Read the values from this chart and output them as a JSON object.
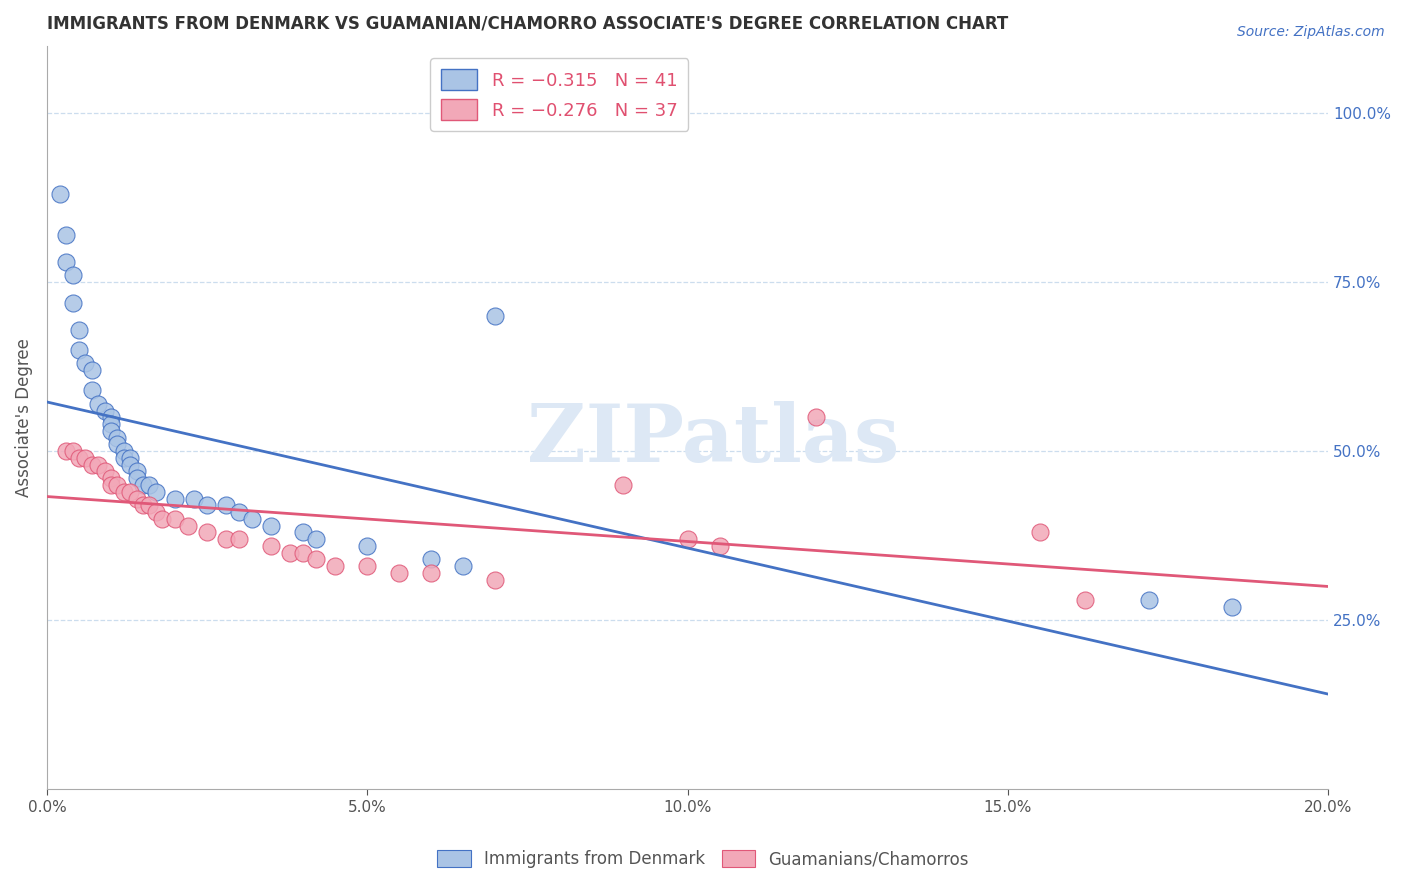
{
  "title": "IMMIGRANTS FROM DENMARK VS GUAMANIAN/CHAMORRO ASSOCIATE'S DEGREE CORRELATION CHART",
  "source": "Source: ZipAtlas.com",
  "ylabel": "Associate's Degree",
  "right_ytick_vals": [
    0.25,
    0.5,
    0.75,
    1.0
  ],
  "right_ytick_labels": [
    "25.0%",
    "50.0%",
    "75.0%",
    "100.0%"
  ],
  "line1_color": "#4472c4",
  "line2_color": "#e05878",
  "scatter1_face": "#aac4e5",
  "scatter2_face": "#f2a8b8",
  "xlim": [
    0.0,
    0.2
  ],
  "ylim": [
    0.0,
    1.1
  ],
  "blue_x": [
    0.002,
    0.003,
    0.003,
    0.004,
    0.004,
    0.005,
    0.005,
    0.006,
    0.007,
    0.007,
    0.008,
    0.009,
    0.01,
    0.01,
    0.01,
    0.011,
    0.011,
    0.012,
    0.012,
    0.013,
    0.013,
    0.014,
    0.014,
    0.015,
    0.016,
    0.017,
    0.02,
    0.023,
    0.025,
    0.028,
    0.03,
    0.032,
    0.035,
    0.04,
    0.042,
    0.05,
    0.06,
    0.065,
    0.07,
    0.172,
    0.185
  ],
  "blue_y": [
    0.88,
    0.82,
    0.78,
    0.76,
    0.72,
    0.68,
    0.65,
    0.63,
    0.62,
    0.59,
    0.57,
    0.56,
    0.55,
    0.54,
    0.53,
    0.52,
    0.51,
    0.5,
    0.49,
    0.49,
    0.48,
    0.47,
    0.46,
    0.45,
    0.45,
    0.44,
    0.43,
    0.43,
    0.42,
    0.42,
    0.41,
    0.4,
    0.39,
    0.38,
    0.37,
    0.36,
    0.34,
    0.33,
    0.7,
    0.28,
    0.27
  ],
  "pink_x": [
    0.003,
    0.004,
    0.005,
    0.006,
    0.007,
    0.008,
    0.009,
    0.01,
    0.01,
    0.011,
    0.012,
    0.013,
    0.014,
    0.015,
    0.016,
    0.017,
    0.018,
    0.02,
    0.022,
    0.025,
    0.028,
    0.03,
    0.035,
    0.038,
    0.04,
    0.042,
    0.045,
    0.05,
    0.055,
    0.06,
    0.07,
    0.09,
    0.1,
    0.105,
    0.12,
    0.155,
    0.162
  ],
  "pink_y": [
    0.5,
    0.5,
    0.49,
    0.49,
    0.48,
    0.48,
    0.47,
    0.46,
    0.45,
    0.45,
    0.44,
    0.44,
    0.43,
    0.42,
    0.42,
    0.41,
    0.4,
    0.4,
    0.39,
    0.38,
    0.37,
    0.37,
    0.36,
    0.35,
    0.35,
    0.34,
    0.33,
    0.33,
    0.32,
    0.32,
    0.31,
    0.45,
    0.37,
    0.36,
    0.55,
    0.38,
    0.28
  ],
  "watermark_text": "ZIPatlas",
  "legend_label1": "Immigrants from Denmark",
  "legend_label2": "Guamanians/Chamorros"
}
